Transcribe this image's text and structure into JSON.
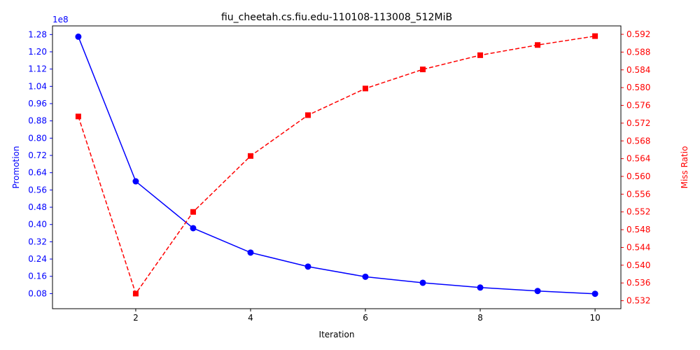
{
  "chart_data": {
    "type": "line",
    "title": "fiu_cheetah.cs.fiu.edu-110108-113008_512MiB",
    "xlabel": "Iteration",
    "ylabel_left": "Promotion",
    "ylabel_right": "Miss Ratio",
    "left_offset_text": "1e8",
    "x": [
      1,
      2,
      3,
      4,
      5,
      6,
      7,
      8,
      9,
      10
    ],
    "xlim": [
      0.55,
      10.45
    ],
    "x_ticks": [
      2,
      4,
      6,
      8,
      10
    ],
    "x_tick_labels": [
      "2",
      "4",
      "6",
      "8",
      "10"
    ],
    "left_ylim": [
      0.01,
      1.32
    ],
    "left_ticks": [
      0.08,
      0.16,
      0.24,
      0.32,
      0.4,
      0.48,
      0.56,
      0.64,
      0.72,
      0.8,
      0.88,
      0.96,
      1.04,
      1.12,
      1.2,
      1.28
    ],
    "left_tick_labels": [
      "0.08",
      "0.16",
      "0.24",
      "0.32",
      "0.40",
      "0.48",
      "0.56",
      "0.64",
      "0.72",
      "0.80",
      "0.88",
      "0.96",
      "1.04",
      "1.12",
      "1.20",
      "1.28"
    ],
    "right_ylim": [
      0.5302,
      0.5939
    ],
    "right_ticks": [
      0.532,
      0.536,
      0.54,
      0.544,
      0.548,
      0.552,
      0.556,
      0.56,
      0.564,
      0.568,
      0.572,
      0.576,
      0.58,
      0.584,
      0.588,
      0.592
    ],
    "right_tick_labels": [
      "0.532",
      "0.536",
      "0.540",
      "0.544",
      "0.548",
      "0.552",
      "0.556",
      "0.560",
      "0.564",
      "0.568",
      "0.572",
      "0.576",
      "0.580",
      "0.584",
      "0.588",
      "0.592"
    ],
    "series": [
      {
        "name": "Promotion",
        "axis": "left",
        "color": "#0000ff",
        "style": "solid",
        "marker": "circle",
        "values": [
          1.27,
          0.6,
          0.383,
          0.27,
          0.205,
          0.158,
          0.13,
          0.108,
          0.092,
          0.079
        ]
      },
      {
        "name": "Miss Ratio",
        "axis": "right",
        "color": "#ff0000",
        "style": "dashed",
        "marker": "square",
        "values": [
          0.5735,
          0.5336,
          0.552,
          0.5646,
          0.5738,
          0.5798,
          0.5841,
          0.5873,
          0.5896,
          0.5916
        ]
      }
    ]
  }
}
